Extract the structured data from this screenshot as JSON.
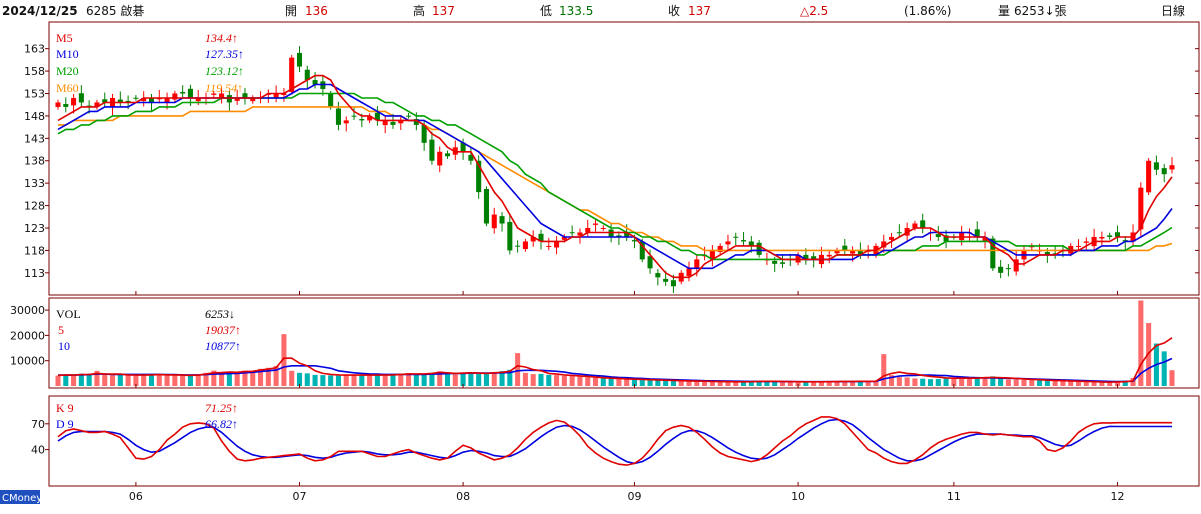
{
  "header": {
    "date": "2024/12/25",
    "stock": "6285 啟碁",
    "open_label": "開",
    "open_value": "136",
    "high_label": "高",
    "high_value": "137",
    "low_label": "低",
    "low_value": "133.5",
    "close_label": "收",
    "close_value": "137",
    "change": "△2.5",
    "change_pct": "(1.86%)",
    "volume_label": "量",
    "volume_value": "6253↓張",
    "period": "日線"
  },
  "branding": "CMoney",
  "colors": {
    "up": "#ff0000",
    "down": "#008000",
    "up_fill": "#ff6b6b",
    "down_fill": "#00b4b4",
    "ma5": "#e00000",
    "ma10": "#0000e0",
    "ma20": "#00a000",
    "ma60": "#ff8c00",
    "k": "#e00000",
    "d": "#0000e0"
  },
  "legend": {
    "price": [
      {
        "name": "M5",
        "value": "134.4↑"
      },
      {
        "name": "M10",
        "value": "127.35↑"
      },
      {
        "name": "M20",
        "value": "123.12↑"
      },
      {
        "name": "M60",
        "value": "119.54↑"
      }
    ],
    "volume": [
      {
        "name": "VOL",
        "value": "6253↓"
      },
      {
        "name": "5",
        "value": "19037↑"
      },
      {
        "name": "10",
        "value": "10877↑"
      }
    ],
    "kd": [
      {
        "name": "K 9",
        "value": "71.25↑"
      },
      {
        "name": "D 9",
        "value": "66.82↑"
      }
    ]
  },
  "chart_data": {
    "type": "candlestick",
    "x_labels": [
      "06",
      "07",
      "08",
      "09",
      "10",
      "11",
      "12"
    ],
    "x_label_index": [
      10,
      31,
      52,
      74,
      95,
      115,
      136
    ],
    "price_axis": {
      "ticks": [
        163,
        158,
        153,
        148,
        143,
        138,
        133,
        128,
        123,
        118,
        113
      ],
      "ylim": [
        108.5,
        168.5
      ]
    },
    "volume_axis": {
      "ticks": [
        30000,
        20000,
        10000
      ],
      "ylim": [
        0,
        34000
      ]
    },
    "kd_axis": {
      "ticks": [
        70,
        40
      ],
      "ylim": [
        0,
        100
      ]
    },
    "close": [
      151,
      150,
      152,
      151,
      150,
      151,
      151,
      152,
      151,
      151,
      152,
      152,
      151,
      152,
      152,
      153,
      153,
      152,
      152,
      152,
      153,
      153,
      151,
      152,
      152,
      152,
      152,
      153,
      153,
      153,
      161,
      159,
      156,
      155,
      154,
      150,
      146,
      147,
      148,
      147,
      148,
      147,
      147,
      146,
      147,
      148,
      146,
      142,
      138,
      140,
      139,
      141,
      140,
      138,
      131,
      124,
      126,
      124,
      118,
      119,
      120,
      121,
      120,
      119,
      120,
      121,
      122,
      122,
      123,
      124,
      123,
      121,
      121,
      121,
      120,
      116,
      114,
      112,
      111,
      110,
      113,
      114,
      116,
      117,
      118,
      119,
      120,
      121,
      120,
      119,
      117,
      116,
      115,
      115,
      116,
      117,
      116,
      116,
      117,
      117,
      118,
      118,
      118,
      117,
      118,
      119,
      120,
      121,
      122,
      123,
      124,
      123,
      122,
      121,
      120,
      121,
      122,
      122,
      121,
      121,
      114,
      113,
      114,
      116,
      118,
      119,
      118,
      117,
      117,
      118,
      119,
      119,
      120,
      121,
      121,
      121,
      121,
      120,
      122,
      132,
      138,
      136,
      135,
      137
    ],
    "volume_left_series": [
      4100,
      4300,
      4100,
      4900,
      4600,
      6000,
      4500,
      4300,
      4600,
      4300,
      4100,
      4300,
      4800,
      4500,
      4100,
      4300,
      4100,
      4000,
      4300,
      5200,
      6100,
      5300,
      5500,
      5200,
      6100,
      5600,
      6800,
      7200,
      7900,
      20500,
      6000,
      5200,
      5000,
      4400,
      4300,
      4200,
      4100,
      4300,
      4400,
      4500,
      4400,
      4200,
      4100,
      4600,
      4900,
      5100,
      4700,
      4600,
      5200,
      5800,
      4900,
      4600,
      5300,
      5400,
      4800,
      5200,
      5500,
      5900,
      6400,
      13000,
      5200,
      4700,
      4800,
      4400,
      4300,
      4000,
      3900,
      3700,
      3500,
      3300,
      3200,
      3000,
      2900,
      2700,
      2600,
      2500,
      2400,
      2300,
      2200,
      2100,
      2000,
      1900,
      1900,
      1800,
      1700,
      1700,
      1600,
      1600,
      1600,
      1800,
      2000,
      1900,
      1800,
      1700,
      1700,
      1700,
      1600,
      1600,
      1700,
      1700,
      1800,
      1800,
      1800,
      1900,
      1900,
      2000,
      12600,
      4300,
      3500,
      3400,
      3000,
      2900,
      2700,
      2800,
      3300,
      2900,
      3100,
      3200,
      3100,
      3600,
      3800,
      2800,
      2600,
      2600,
      2500,
      2400,
      2200,
      2100,
      2000,
      2000,
      1800,
      1700,
      1600,
      1500,
      1500,
      1400,
      1800,
      2100,
      3200,
      33800,
      24900,
      16800,
      13700,
      6253
    ],
    "ma5": [
      147,
      148,
      149,
      150,
      150,
      150,
      151,
      151,
      151,
      151,
      151,
      152,
      152,
      152,
      152,
      152,
      152,
      152,
      152,
      152,
      152,
      152,
      152,
      152,
      152,
      152,
      152,
      153,
      153,
      153,
      154,
      155,
      156,
      157,
      157,
      156,
      153,
      151,
      149,
      148,
      148,
      147,
      147,
      147,
      147,
      147,
      147,
      146,
      144,
      143,
      141,
      140,
      140,
      140,
      137,
      134,
      131,
      129,
      126,
      123,
      122,
      121,
      120,
      120,
      120,
      120,
      121,
      121,
      122,
      122,
      122,
      122,
      122,
      122,
      121,
      119,
      117,
      115,
      113,
      112,
      112,
      112,
      113,
      115,
      116,
      117,
      118,
      119,
      119,
      119,
      119,
      118,
      117,
      116,
      116,
      116,
      116,
      116,
      116,
      116,
      117,
      117,
      117,
      117,
      118,
      118,
      119,
      120,
      121,
      122,
      123,
      123,
      123,
      122,
      121,
      121,
      121,
      121,
      121,
      121,
      119,
      118,
      117,
      115,
      115,
      116,
      117,
      117,
      117,
      118,
      118,
      118,
      119,
      120,
      120,
      120,
      121,
      121,
      121,
      123,
      127,
      130,
      132,
      134.4
    ],
    "ma10": [
      145,
      146,
      147,
      148,
      149,
      149,
      150,
      150,
      150,
      150,
      151,
      151,
      151,
      151,
      151,
      151,
      152,
      152,
      152,
      152,
      152,
      152,
      152,
      152,
      152,
      152,
      152,
      152,
      152,
      152,
      153,
      154,
      154,
      155,
      155,
      155,
      154,
      153,
      152,
      151,
      150,
      149,
      148,
      148,
      148,
      147,
      147,
      147,
      146,
      145,
      144,
      143,
      142,
      141,
      140,
      138,
      136,
      134,
      132,
      130,
      128,
      126,
      124,
      123,
      122,
      121,
      121,
      121,
      121,
      121,
      121,
      121,
      121,
      121,
      121,
      120,
      119,
      118,
      117,
      116,
      115,
      114,
      114,
      114,
      114,
      115,
      116,
      117,
      117,
      118,
      118,
      118,
      117,
      117,
      117,
      117,
      116,
      116,
      116,
      116,
      116,
      116,
      116,
      117,
      117,
      117,
      118,
      118,
      119,
      120,
      121,
      121,
      122,
      122,
      122,
      122,
      122,
      122,
      121,
      121,
      120,
      119,
      118,
      117,
      117,
      117,
      117,
      117,
      117,
      117,
      117,
      118,
      118,
      118,
      119,
      119,
      119,
      120,
      120,
      121,
      122,
      123,
      125,
      127.35
    ],
    "ma20": [
      144,
      145,
      145,
      146,
      146,
      147,
      147,
      148,
      148,
      148,
      149,
      149,
      149,
      150,
      150,
      150,
      151,
      151,
      151,
      151,
      151,
      152,
      152,
      152,
      152,
      152,
      152,
      152,
      152,
      152,
      152,
      153,
      153,
      153,
      153,
      153,
      153,
      153,
      153,
      152,
      152,
      152,
      151,
      151,
      150,
      149,
      148,
      148,
      147,
      147,
      146,
      146,
      145,
      144,
      143,
      142,
      141,
      140,
      138,
      137,
      135,
      134,
      133,
      131,
      130,
      129,
      128,
      127,
      126,
      125,
      124,
      123,
      123,
      122,
      122,
      121,
      121,
      120,
      120,
      119,
      118,
      118,
      117,
      117,
      116,
      116,
      116,
      116,
      116,
      116,
      116,
      116,
      116,
      116,
      116,
      116,
      116,
      116,
      116,
      116,
      117,
      117,
      117,
      117,
      117,
      117,
      117,
      118,
      118,
      118,
      118,
      119,
      119,
      119,
      120,
      120,
      120,
      120,
      120,
      120,
      120,
      120,
      120,
      119,
      119,
      119,
      119,
      119,
      119,
      119,
      118,
      118,
      118,
      118,
      118,
      118,
      118,
      118,
      119,
      119,
      120,
      121,
      122,
      123.12
    ],
    "ma60": [
      146,
      146,
      147,
      147,
      147,
      147,
      147,
      147,
      148,
      148,
      148,
      148,
      148,
      148,
      148,
      148,
      148,
      149,
      149,
      149,
      149,
      149,
      149,
      149,
      149,
      150,
      150,
      150,
      150,
      150,
      150,
      150,
      150,
      150,
      150,
      150,
      150,
      150,
      150,
      150,
      149,
      149,
      149,
      148,
      148,
      147,
      147,
      146,
      145,
      145,
      144,
      143,
      142,
      141,
      140,
      139,
      138,
      137,
      136,
      135,
      134,
      133,
      132,
      131,
      130,
      129,
      128,
      127,
      127,
      126,
      125,
      124,
      124,
      123,
      122,
      122,
      121,
      121,
      120,
      120,
      119,
      119,
      119,
      118,
      118,
      118,
      118,
      118,
      118,
      118,
      118,
      118,
      118,
      118,
      118,
      118,
      118,
      118,
      118,
      118,
      118,
      118,
      118,
      118,
      118,
      118,
      118,
      118,
      118,
      118,
      118,
      118,
      118,
      118,
      118,
      118,
      118,
      118,
      118,
      118,
      118,
      118,
      118,
      118,
      118,
      118,
      118,
      118,
      118,
      118,
      118,
      118,
      118,
      118,
      118,
      118,
      118,
      118,
      118,
      118,
      118,
      119,
      119,
      119.54
    ],
    "vol5": [
      4200,
      4400,
      4300,
      4500,
      4600,
      5000,
      4800,
      4700,
      4700,
      4400,
      4300,
      4300,
      4400,
      4500,
      4400,
      4400,
      4300,
      4200,
      4300,
      4700,
      5200,
      5300,
      5500,
      5400,
      5700,
      5800,
      6300,
      6700,
      7200,
      11000,
      11000,
      9000,
      8000,
      6000,
      5000,
      4600,
      4400,
      4300,
      4300,
      4300,
      4300,
      4300,
      4300,
      4400,
      4600,
      4800,
      4800,
      4800,
      5000,
      5400,
      5200,
      5000,
      5100,
      5200,
      5100,
      5000,
      5200,
      5400,
      5800,
      8000,
      7500,
      6500,
      6000,
      5000,
      4700,
      4400,
      4200,
      4000,
      3800,
      3500,
      3300,
      3100,
      3000,
      2800,
      2700,
      2600,
      2500,
      2400,
      2300,
      2200,
      2100,
      2000,
      1950,
      1900,
      1800,
      1750,
      1700,
      1650,
      1650,
      1700,
      1800,
      1850,
      1850,
      1800,
      1750,
      1700,
      1650,
      1650,
      1650,
      1700,
      1750,
      1800,
      1800,
      1850,
      1850,
      1900,
      4000,
      5000,
      5500,
      5000,
      4800,
      4200,
      3800,
      3500,
      3200,
      3100,
      3100,
      3100,
      3100,
      3300,
      3400,
      3300,
      3200,
      3000,
      2800,
      2600,
      2500,
      2300,
      2200,
      2100,
      2000,
      1900,
      1800,
      1700,
      1600,
      1500,
      1600,
      1700,
      2000,
      8500,
      13000,
      16000,
      17000,
      19037
    ],
    "vol10": [
      4300,
      4300,
      4300,
      4400,
      4500,
      4700,
      4700,
      4600,
      4600,
      4600,
      4600,
      4600,
      4600,
      4600,
      4500,
      4500,
      4400,
      4400,
      4400,
      4500,
      4700,
      4800,
      4900,
      5000,
      5200,
      5400,
      5700,
      6000,
      6300,
      7500,
      8000,
      8000,
      8000,
      8000,
      7500,
      7000,
      6000,
      5600,
      5200,
      5000,
      4800,
      4700,
      4600,
      4600,
      4600,
      4600,
      4600,
      4600,
      4700,
      4800,
      4900,
      5000,
      5000,
      5100,
      5100,
      5100,
      5100,
      5200,
      5300,
      6000,
      6200,
      6200,
      6200,
      6000,
      5800,
      5500,
      5000,
      4700,
      4400,
      4100,
      3900,
      3600,
      3400,
      3300,
      3100,
      3000,
      2800,
      2700,
      2600,
      2500,
      2400,
      2300,
      2200,
      2100,
      2050,
      2000,
      1950,
      1900,
      1850,
      1800,
      1800,
      1780,
      1760,
      1740,
      1720,
      1700,
      1700,
      1700,
      1700,
      1700,
      1700,
      1720,
      1740,
      1760,
      1780,
      1800,
      2800,
      3400,
      3900,
      4100,
      4200,
      4300,
      4300,
      4200,
      4100,
      3800,
      3600,
      3400,
      3300,
      3200,
      3200,
      3100,
      3050,
      3000,
      2900,
      2800,
      2700,
      2600,
      2500,
      2400,
      2300,
      2200,
      2100,
      2000,
      1900,
      1800,
      1750,
      1800,
      1900,
      5000,
      7000,
      8500,
      9500,
      10877
    ],
    "k": [
      55,
      62,
      64,
      62,
      60,
      60,
      61,
      58,
      54,
      42,
      30,
      29,
      32,
      40,
      51,
      58,
      66,
      70,
      71,
      70,
      65,
      50,
      38,
      29,
      27,
      28,
      30,
      31,
      32,
      33,
      34,
      35,
      30,
      27,
      28,
      32,
      38,
      38,
      38,
      38,
      35,
      32,
      32,
      35,
      38,
      40,
      36,
      33,
      30,
      28,
      30,
      38,
      45,
      42,
      36,
      32,
      28,
      30,
      34,
      42,
      52,
      60,
      66,
      71,
      74,
      72,
      65,
      56,
      44,
      36,
      30,
      26,
      23,
      22,
      24,
      30,
      40,
      52,
      62,
      66,
      68,
      66,
      60,
      52,
      43,
      36,
      32,
      30,
      28,
      26,
      28,
      34,
      42,
      50,
      56,
      64,
      70,
      74,
      78,
      78,
      76,
      70,
      60,
      50,
      40,
      36,
      30,
      26,
      24,
      24,
      28,
      34,
      42,
      48,
      52,
      55,
      58,
      60,
      60,
      58,
      57,
      58,
      57,
      56,
      55,
      55,
      50,
      40,
      38,
      42,
      50,
      60,
      66,
      70,
      71,
      71,
      71.25,
      71.25,
      71.25,
      71.25,
      71.25,
      71.25,
      71.25,
      71.25
    ],
    "d": [
      50,
      56,
      60,
      61,
      61,
      61,
      61,
      60,
      58,
      52,
      45,
      40,
      37,
      38,
      43,
      48,
      54,
      60,
      64,
      66,
      66,
      60,
      52,
      44,
      38,
      34,
      32,
      31,
      31,
      32,
      33,
      34,
      33,
      31,
      30,
      31,
      34,
      36,
      37,
      38,
      37,
      35,
      34,
      34,
      35,
      37,
      37,
      35,
      33,
      31,
      30,
      33,
      37,
      39,
      38,
      36,
      33,
      32,
      32,
      36,
      41,
      48,
      55,
      61,
      66,
      68,
      67,
      63,
      57,
      50,
      43,
      37,
      31,
      26,
      24,
      26,
      31,
      38,
      46,
      53,
      59,
      62,
      62,
      59,
      54,
      48,
      42,
      37,
      33,
      30,
      29,
      30,
      34,
      40,
      46,
      53,
      59,
      65,
      70,
      74,
      75,
      73,
      69,
      62,
      54,
      47,
      40,
      35,
      30,
      27,
      27,
      29,
      34,
      39,
      44,
      49,
      53,
      56,
      58,
      58,
      58,
      58,
      57,
      57,
      56,
      56,
      54,
      50,
      46,
      44,
      45,
      50,
      56,
      61,
      65,
      67,
      66.82,
      66.82,
      66.82,
      66.82,
      66.82,
      66.82,
      66.82,
      66.82
    ]
  }
}
